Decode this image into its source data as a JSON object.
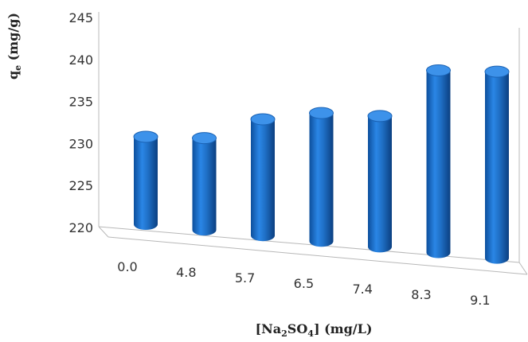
{
  "chart_data": {
    "type": "bar",
    "style": "3d-cylinder",
    "color": "#1f6fc5",
    "categories": [
      "0.0",
      "4.8",
      "5.7",
      "6.5",
      "7.4",
      "8.3",
      "9.1"
    ],
    "values": [
      230.8,
      231.3,
      234.2,
      235.6,
      235.9,
      242.0,
      242.5
    ],
    "ylim": [
      220,
      245
    ],
    "yticks": [
      "220",
      "225",
      "230",
      "235",
      "240",
      "245"
    ],
    "ylabel": {
      "main": "q",
      "sub": "e",
      "unit": " (mg/g)"
    },
    "xlabel": {
      "pre": "[Na",
      "sub1": "2",
      "mid": "SO",
      "sub2": "4",
      "post": "] (mg/L)"
    },
    "grid": false,
    "legend": "none"
  }
}
